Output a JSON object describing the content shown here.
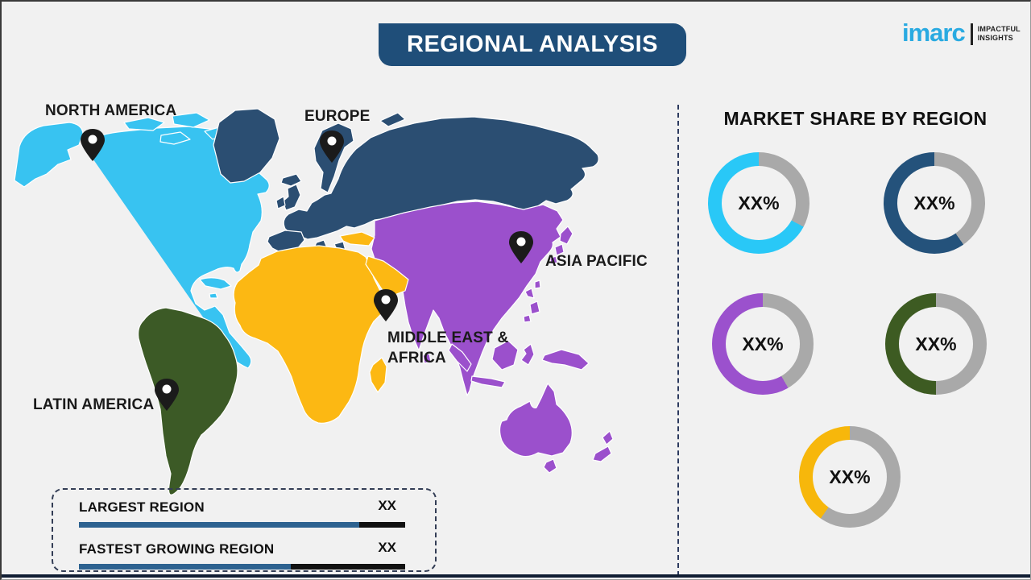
{
  "title": "REGIONAL ANALYSIS",
  "logo": {
    "brand": "imarc",
    "tagline_line1": "IMPACTFUL",
    "tagline_line2": "INSIGHTS"
  },
  "map": {
    "regions": [
      {
        "id": "north-america",
        "label": "NORTH AMERICA",
        "color": "#38c3f1"
      },
      {
        "id": "europe",
        "label": "EUROPE",
        "color": "#2b4e72"
      },
      {
        "id": "asia-pacific",
        "label": "ASIA PACIFIC",
        "color": "#9b50cc"
      },
      {
        "id": "middle-east-africa",
        "label": "MIDDLE EAST & AFRICA",
        "color": "#fcb813"
      },
      {
        "id": "latin-america",
        "label": "LATIN AMERICA",
        "color": "#3c5a26"
      }
    ]
  },
  "market_share": {
    "heading": "MARKET SHARE BY REGION",
    "donuts": [
      {
        "region": "north-america",
        "value": "XX%",
        "color": "#29c8f7",
        "track_deg": 118
      },
      {
        "region": "europe",
        "value": "XX%",
        "color": "#24527b",
        "track_deg": 145
      },
      {
        "region": "asia-pacific",
        "value": "XX%",
        "color": "#9b51cd",
        "track_deg": 150
      },
      {
        "region": "middle-east-africa",
        "value": "XX%",
        "color": "#3d5b22",
        "track_deg": 180
      },
      {
        "region": "latin-america",
        "value": "XX%",
        "color": "#f7b70b",
        "track_deg": 215
      }
    ]
  },
  "legend": {
    "rows": [
      {
        "label": "LARGEST REGION",
        "value": "XX",
        "fill_pct": 86
      },
      {
        "label": "FASTEST GROWING REGION",
        "value": "XX",
        "fill_pct": 65
      }
    ]
  },
  "colors": {
    "background": "#f1f1f1",
    "banner": "#1f4e79",
    "track_gray": "#a9a9a9",
    "bar_blue": "#2d6290",
    "bar_black": "#111111",
    "pin_black": "#1b1b1b"
  },
  "chart_data": {
    "type": "pie",
    "title": "MARKET SHARE BY REGION",
    "series": [
      {
        "name": "North America",
        "label": "XX%"
      },
      {
        "name": "Europe",
        "label": "XX%"
      },
      {
        "name": "Asia Pacific",
        "label": "XX%"
      },
      {
        "name": "Middle East & Africa",
        "label": "XX%"
      },
      {
        "name": "Latin America",
        "label": "XX%"
      }
    ]
  }
}
